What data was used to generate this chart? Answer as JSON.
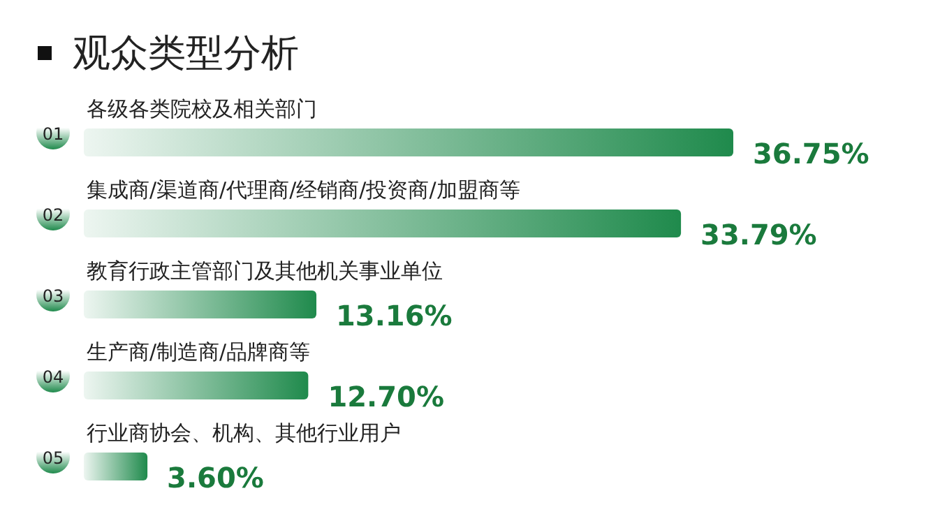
{
  "chart_data": {
    "type": "bar",
    "orientation": "horizontal",
    "title": "观众类型分析",
    "categories": [
      "各级各类院校及相关部门",
      "集成商/渠道商/代理商/经销商/投资商/加盟商等",
      "教育行政主管部门及其他机关事业单位",
      "生产商/制造商/品牌商等",
      "行业商协会、机构、其他行业用户"
    ],
    "values": [
      36.75,
      33.79,
      13.16,
      12.7,
      3.6
    ],
    "value_labels": [
      "36.75%",
      "33.79%",
      "13.16%",
      "12.70%",
      "3.60%"
    ],
    "annotations": [
      "01",
      "02",
      "03",
      "04",
      "05"
    ],
    "color": "#1f8a4c"
  }
}
